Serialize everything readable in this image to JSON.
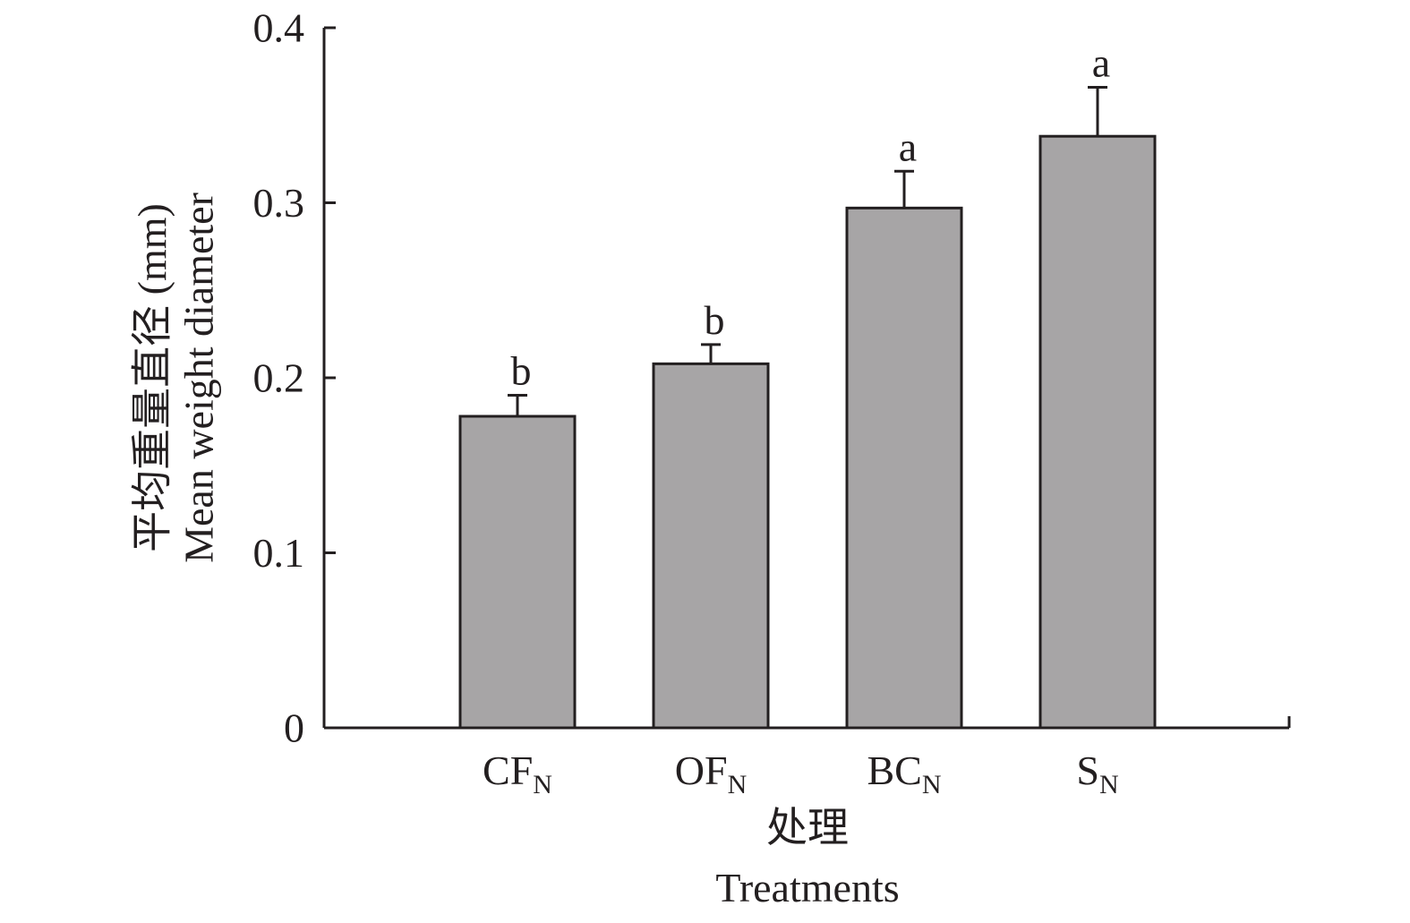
{
  "chart_data": {
    "type": "bar",
    "categories": [
      {
        "main": "CF",
        "sub": "N"
      },
      {
        "main": "OF",
        "sub": "N"
      },
      {
        "main": "BC",
        "sub": "N"
      },
      {
        "main": "S",
        "sub": "N"
      }
    ],
    "values": [
      0.178,
      0.208,
      0.297,
      0.338
    ],
    "errors": [
      0.012,
      0.011,
      0.021,
      0.028
    ],
    "significance": [
      "b",
      "b",
      "a",
      "a"
    ],
    "ylim": [
      0,
      0.4
    ],
    "yticks": [
      0,
      0.1,
      0.2,
      0.3,
      0.4
    ],
    "ytick_labels": [
      "0",
      "0.1",
      "0.2",
      "0.3",
      "0.4"
    ],
    "xlabel": {
      "line1": "处理",
      "line2": "Treatments"
    },
    "ylabel": {
      "line1": "平均重量直径 (mm)",
      "line2": "Mean weight diameter"
    },
    "bar_color": "#a7a5a6",
    "edge_color": "#231f20",
    "grid": false,
    "legend": "none"
  }
}
